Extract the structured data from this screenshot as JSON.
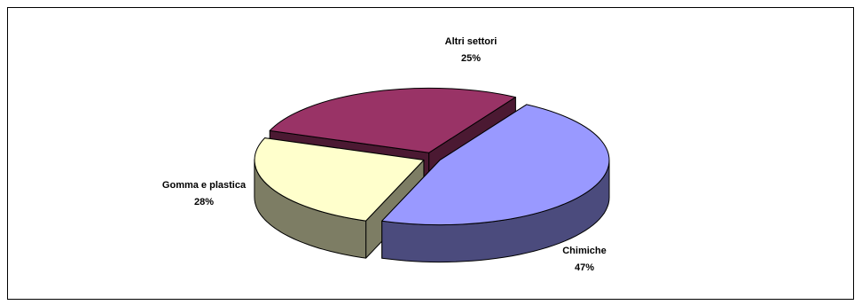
{
  "chart_data": {
    "type": "pie",
    "style": "3d-exploded",
    "categories": [
      "Chimiche",
      "Gomma e plastica",
      "Altri settori"
    ],
    "values": [
      47,
      28,
      25
    ],
    "value_labels": [
      "47%",
      "28%",
      "25%"
    ],
    "colors": [
      "#9999FF",
      "#993366",
      "#FFFFCC"
    ],
    "side_colors": [
      "#4B4B7D",
      "#4B1932",
      "#7D7D64"
    ],
    "legend": "none"
  }
}
